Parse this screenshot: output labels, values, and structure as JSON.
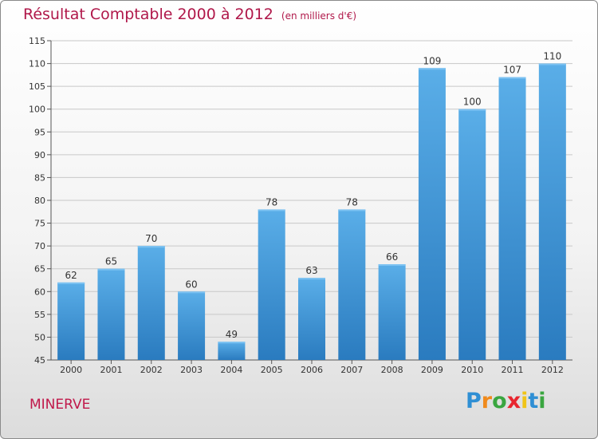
{
  "title": "Résultat Comptable 2000 à 2012",
  "subtitle": "(en milliers d'€)",
  "location": "MINERVE",
  "logo": {
    "text": "Proxiti",
    "letters": [
      "P",
      "r",
      "o",
      "x",
      "i",
      "t",
      "i"
    ],
    "colors": [
      "#2f8fd4",
      "#f08a1c",
      "#3aa640",
      "#e8262f",
      "#f0c418",
      "#2f8fd4",
      "#3aa640"
    ]
  },
  "colors": {
    "title": "#b0184a",
    "bar_light": "#5aaee8",
    "bar_dark": "#2a7bbf",
    "grid": "#c8c8c8",
    "axis_text": "#333333"
  },
  "chart_data": {
    "type": "bar",
    "categories": [
      "2000",
      "2001",
      "2002",
      "2003",
      "2004",
      "2005",
      "2006",
      "2007",
      "2008",
      "2009",
      "2010",
      "2011",
      "2012"
    ],
    "values": [
      62,
      65,
      70,
      60,
      49,
      78,
      63,
      78,
      66,
      109,
      100,
      107,
      110
    ],
    "ylim": [
      45,
      115
    ],
    "yticks": [
      45,
      50,
      55,
      60,
      65,
      70,
      75,
      80,
      85,
      90,
      95,
      100,
      105,
      110,
      115
    ],
    "grid": true,
    "data_labels": true
  }
}
